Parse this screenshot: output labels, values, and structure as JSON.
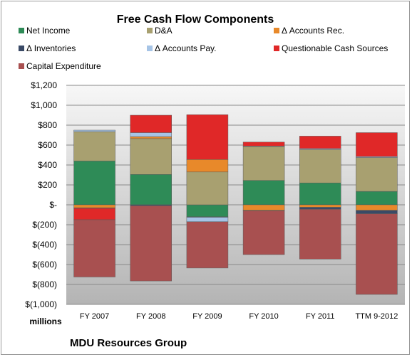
{
  "chart_data": {
    "type": "bar",
    "stacked": true,
    "title": "Free Cash Flow Components",
    "unit_label": "millions",
    "footer": "MDU Resources Group",
    "categories": [
      "FY 2007",
      "FY 2008",
      "FY 2009",
      "FY 2010",
      "FY 2011",
      "TTM 9-2012"
    ],
    "ylim": [
      -1000,
      1200
    ],
    "yticks": [
      {
        "value": 1200,
        "label": "$1,200"
      },
      {
        "value": 1000,
        "label": "$1,000"
      },
      {
        "value": 800,
        "label": "$800"
      },
      {
        "value": 600,
        "label": "$600"
      },
      {
        "value": 400,
        "label": "$400"
      },
      {
        "value": 200,
        "label": "$200"
      },
      {
        "value": 0,
        "label": "$-"
      },
      {
        "value": -200,
        "label": "$(200)"
      },
      {
        "value": -400,
        "label": "$(400)"
      },
      {
        "value": -600,
        "label": "$(600)"
      },
      {
        "value": -800,
        "label": "$(800)"
      },
      {
        "value": -1000,
        "label": "$(1,000)"
      }
    ],
    "grid": true,
    "legend_position": "top",
    "series": [
      {
        "name": "Net Income",
        "color": "#2e8b57",
        "values": [
          440,
          305,
          -120,
          245,
          220,
          135
        ]
      },
      {
        "name": "D&A",
        "color": "#a8a070",
        "values": [
          295,
          360,
          330,
          340,
          335,
          340
        ]
      },
      {
        "name": "Δ Accounts Rec.",
        "color": "#e8892a",
        "values": [
          -30,
          20,
          125,
          -55,
          -25,
          -55
        ]
      },
      {
        "name": "Δ Inventories",
        "color": "#3a4a66",
        "values": [
          -5,
          -10,
          -5,
          -5,
          -20,
          -35
        ]
      },
      {
        "name": "Δ Accounts Pay.",
        "color": "#a6c4e6",
        "values": [
          15,
          40,
          -45,
          5,
          10,
          10
        ]
      },
      {
        "name": "Questionable Cash Sources",
        "color": "#e02828",
        "values": [
          -115,
          175,
          450,
          40,
          125,
          240
        ]
      },
      {
        "name": "Capital Expenditure",
        "color": "#a85050",
        "values": [
          -575,
          -755,
          -465,
          -440,
          -500,
          -810
        ]
      }
    ]
  }
}
